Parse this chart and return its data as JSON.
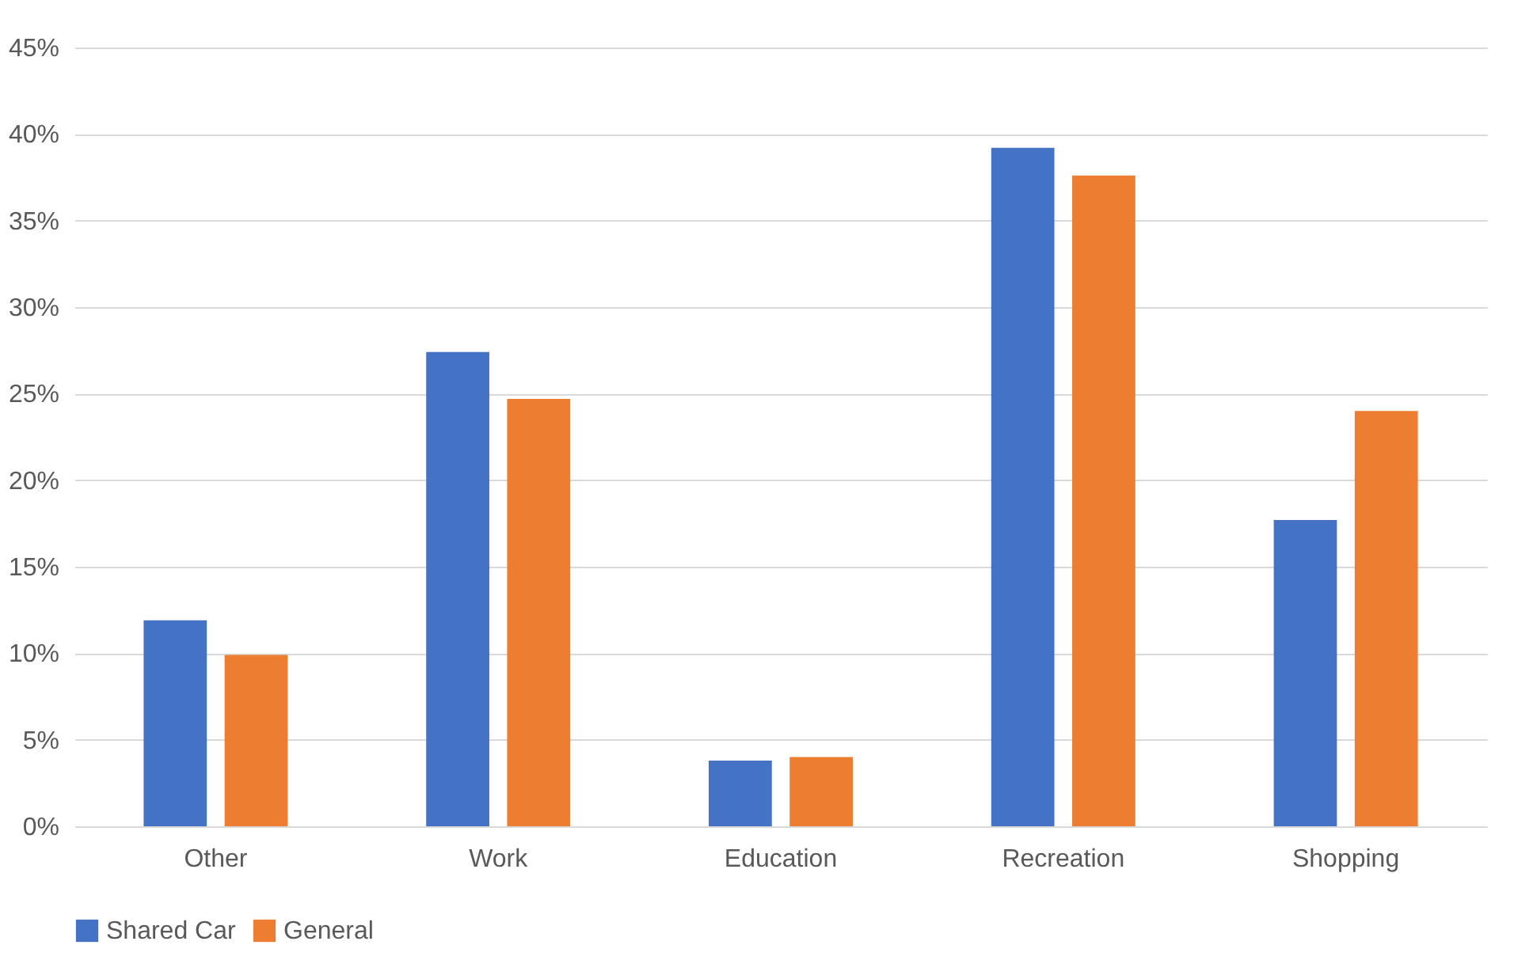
{
  "chart_data": {
    "type": "bar",
    "categories": [
      "Other",
      "Work",
      "Education",
      "Recreation",
      "Shopping"
    ],
    "series": [
      {
        "name": "Shared Car",
        "color": "#4472c4",
        "values": [
          11.9,
          27.4,
          3.8,
          39.2,
          17.7
        ]
      },
      {
        "name": "General",
        "color": "#ed7d31",
        "values": [
          9.9,
          24.7,
          4.0,
          37.6,
          24.0
        ]
      }
    ],
    "ylim": [
      0,
      45
    ],
    "yticks": [
      {
        "value": 0,
        "label": "0%"
      },
      {
        "value": 5,
        "label": "5%"
      },
      {
        "value": 10,
        "label": "10%"
      },
      {
        "value": 15,
        "label": "15%"
      },
      {
        "value": 20,
        "label": "20%"
      },
      {
        "value": 25,
        "label": "25%"
      },
      {
        "value": 30,
        "label": "30%"
      },
      {
        "value": 35,
        "label": "35%"
      },
      {
        "value": 40,
        "label": "40%"
      },
      {
        "value": 45,
        "label": "45%"
      }
    ],
    "grid": "y",
    "legend": "bottom"
  }
}
